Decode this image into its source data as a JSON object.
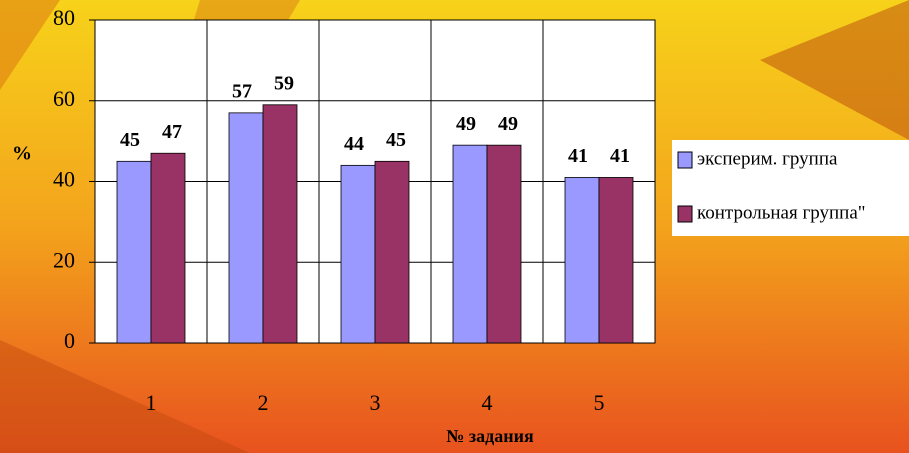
{
  "chart_data": {
    "type": "bar",
    "x_label": "№ задания",
    "y_label": "%",
    "categories": [
      "1",
      "2",
      "3",
      "4",
      "5"
    ],
    "series": [
      {
        "name": "эксперим. группа",
        "color": "#9999ff",
        "values": [
          45,
          57,
          44,
          49,
          41
        ]
      },
      {
        "name": "контрольная группа\"",
        "color": "#993366",
        "values": [
          47,
          59,
          45,
          49,
          41
        ]
      }
    ],
    "ylim": [
      0,
      80
    ],
    "yticks": [
      0,
      20,
      40,
      60,
      80
    ],
    "grid": true
  }
}
